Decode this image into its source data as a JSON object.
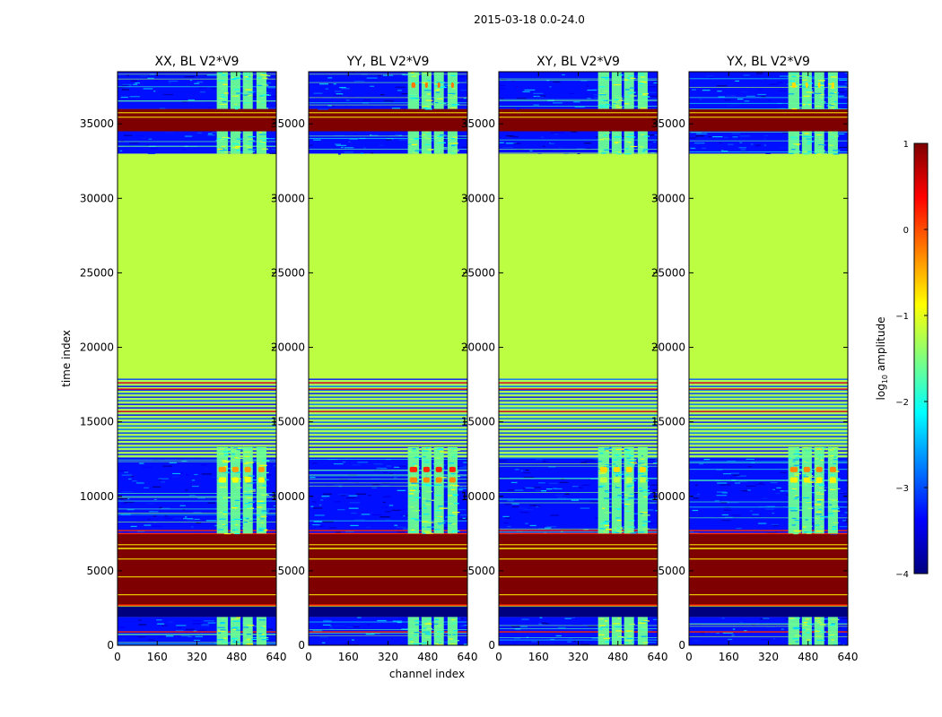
{
  "figure": {
    "suptitle": "2015-03-18 0.0-24.0",
    "xlabel": "channel index",
    "ylabel": "time index"
  },
  "colorbar": {
    "label_parts": [
      "log",
      "10",
      " amplitude"
    ],
    "ticks": [
      1,
      0,
      -1,
      -2,
      -3,
      -4
    ],
    "tick_labels": [
      "1",
      "0",
      "−1",
      "−2",
      "−3",
      "−4"
    ],
    "range": [
      -4,
      1
    ],
    "colormap": "jet",
    "colors": [
      "#00007f",
      "#0000ff",
      "#007fff",
      "#00ffff",
      "#7fff7f",
      "#ffff00",
      "#ff7f00",
      "#ff0000",
      "#7f0000"
    ]
  },
  "chart_data": {
    "type": "heatmap",
    "panels": [
      {
        "title": "XX, BL V2*V9",
        "polarization": "XX",
        "baseline": "V2*V9"
      },
      {
        "title": "YY, BL V2*V9",
        "polarization": "YY",
        "baseline": "V2*V9"
      },
      {
        "title": "XY, BL V2*V9",
        "polarization": "XY",
        "baseline": "V2*V9"
      },
      {
        "title": "YX, BL V2*V9",
        "polarization": "YX",
        "baseline": "V2*V9"
      }
    ],
    "x": {
      "min": 0,
      "max": 640,
      "ticks": [
        0,
        160,
        320,
        480,
        640
      ],
      "label": "channel index"
    },
    "y": {
      "min": 0,
      "max": 38500,
      "ticks": [
        0,
        5000,
        10000,
        15000,
        20000,
        25000,
        30000,
        35000
      ],
      "label": "time index"
    },
    "value_units": "log10 amplitude",
    "bands": [
      {
        "t0": 0,
        "t1": 1900,
        "log_amp": -3.3,
        "kind": "noise"
      },
      {
        "t0": 1900,
        "t1": 2700,
        "log_amp": -4.0,
        "kind": "gap"
      },
      {
        "t0": 2700,
        "t1": 7500,
        "log_amp": 1.0,
        "kind": "saturated"
      },
      {
        "t0": 7500,
        "t1": 12600,
        "log_amp": -3.3,
        "kind": "noise"
      },
      {
        "t0": 12600,
        "t1": 17900,
        "log_amp": -1.3,
        "kind": "striped"
      },
      {
        "t0": 17900,
        "t1": 33000,
        "log_amp": -1.2,
        "kind": "flat"
      },
      {
        "t0": 33000,
        "t1": 34500,
        "log_amp": -3.3,
        "kind": "noise"
      },
      {
        "t0": 34500,
        "t1": 36000,
        "log_amp": 1.0,
        "kind": "saturated"
      },
      {
        "t0": 36000,
        "t1": 38500,
        "log_amp": -3.3,
        "kind": "noise"
      }
    ],
    "rfi_channels": [
      [
        400,
        445
      ],
      [
        455,
        495
      ],
      [
        505,
        545
      ],
      [
        560,
        600
      ]
    ],
    "rfi_log_amp": -1.6,
    "rfi_peak_log_amp": {
      "XX": -0.4,
      "YY": 0.2,
      "XY": -0.7,
      "YX": -0.3
    }
  }
}
